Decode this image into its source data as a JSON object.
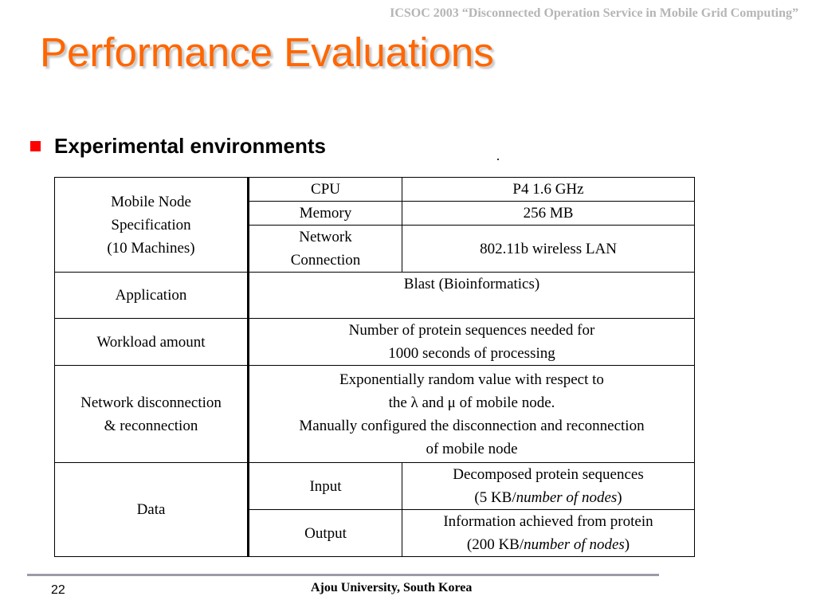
{
  "header": {
    "conference_line": "ICSOC 2003 “Disconnected Operation Service in Mobile Grid Computing”"
  },
  "title": "Performance Evaluations",
  "bullet": {
    "text": "Experimental environments"
  },
  "table": {
    "mobile_node": {
      "label_line1": "Mobile Node",
      "label_line2": "Specification",
      "label_line3": "(10 Machines)",
      "cpu_label": "CPU",
      "cpu_value": "P4 1.6 GHz",
      "memory_label": "Memory",
      "memory_value": "256 MB",
      "network_label_line1": "Network",
      "network_label_line2": "Connection",
      "network_value": "802.11b wireless LAN"
    },
    "application": {
      "label": "Application",
      "value": "Blast (Bioinformatics)"
    },
    "workload": {
      "label": "Workload amount",
      "value_line1": "Number of protein sequences needed for",
      "value_line2": "1000 seconds of processing"
    },
    "disconnection": {
      "label_line1": "Network disconnection",
      "label_line2": "& reconnection",
      "value_line1": "Exponentially random value with respect to",
      "value_line2": "the λ and μ of mobile node.",
      "value_line3": "Manually configured the disconnection and reconnection",
      "value_line4": "of mobile node"
    },
    "data": {
      "label": "Data",
      "input_label": "Input",
      "input_value_line1": "Decomposed protein sequences",
      "input_value_prefix": "(5 KB/",
      "input_value_italic": "number of nodes",
      "input_value_suffix": ")",
      "output_label": "Output",
      "output_value_line1": "Information achieved from protein",
      "output_value_prefix": "(200 KB/",
      "output_value_italic": "number of nodes",
      "output_value_suffix": ")"
    }
  },
  "footer": {
    "page_number": "22",
    "affiliation": "Ajou University, South Korea"
  }
}
